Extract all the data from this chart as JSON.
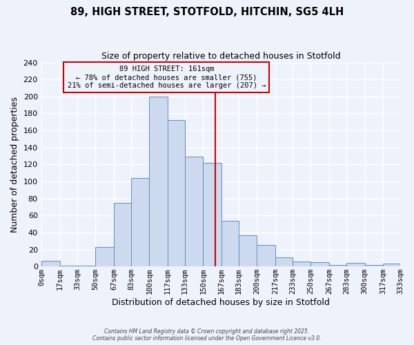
{
  "title": "89, HIGH STREET, STOTFOLD, HITCHIN, SG5 4LH",
  "subtitle": "Size of property relative to detached houses in Stotfold",
  "xlabel": "Distribution of detached houses by size in Stotfold",
  "ylabel": "Number of detached properties",
  "bar_color": "#ccd9ee",
  "bar_edge_color": "#6090c0",
  "background_color": "#eef2fb",
  "grid_color": "#ffffff",
  "annotation_box_edge": "#cc0000",
  "vline_color": "#cc0000",
  "vline_x": 161,
  "annotation_title": "89 HIGH STREET: 161sqm",
  "annotation_line1": "← 78% of detached houses are smaller (755)",
  "annotation_line2": "21% of semi-detached houses are larger (207) →",
  "footnote1": "Contains HM Land Registry data © Crown copyright and database right 2025.",
  "footnote2": "Contains public sector information licensed under the Open Government Licence v3.0.",
  "bins": [
    0,
    17,
    33,
    50,
    67,
    83,
    100,
    117,
    133,
    150,
    167,
    183,
    200,
    217,
    233,
    250,
    267,
    283,
    300,
    317,
    333
  ],
  "counts": [
    7,
    1,
    1,
    23,
    75,
    104,
    200,
    172,
    129,
    122,
    54,
    37,
    25,
    11,
    6,
    5,
    2,
    4,
    2,
    3
  ],
  "tick_labels": [
    "0sqm",
    "17sqm",
    "33sqm",
    "50sqm",
    "67sqm",
    "83sqm",
    "100sqm",
    "117sqm",
    "133sqm",
    "150sqm",
    "167sqm",
    "183sqm",
    "200sqm",
    "217sqm",
    "233sqm",
    "250sqm",
    "267sqm",
    "283sqm",
    "300sqm",
    "317sqm",
    "333sqm"
  ],
  "ylim": [
    0,
    240
  ],
  "yticks": [
    0,
    20,
    40,
    60,
    80,
    100,
    120,
    140,
    160,
    180,
    200,
    220,
    240
  ]
}
